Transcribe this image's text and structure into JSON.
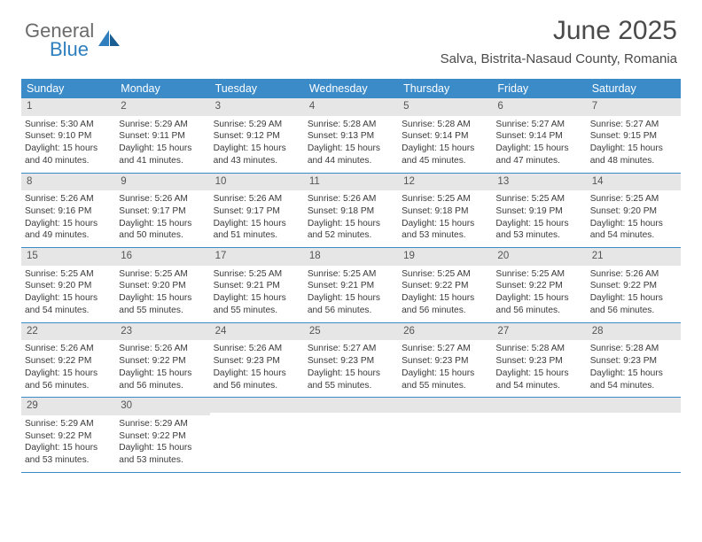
{
  "brand": {
    "line1": "General",
    "line2": "Blue"
  },
  "title": "June 2025",
  "location": "Salva, Bistrita-Nasaud County, Romania",
  "colors": {
    "header_bg": "#3b8bc9",
    "header_text": "#ffffff",
    "daynum_bg": "#e6e6e6",
    "border": "#3b8bc9",
    "text": "#3a3a3a",
    "brand_gray": "#6b6b6b",
    "brand_blue": "#2f7fbf"
  },
  "typography": {
    "title_fontsize": 30,
    "location_fontsize": 15,
    "weekday_fontsize": 12.5,
    "daynum_fontsize": 11.5,
    "body_fontsize": 10.2
  },
  "weekdays": [
    "Sunday",
    "Monday",
    "Tuesday",
    "Wednesday",
    "Thursday",
    "Friday",
    "Saturday"
  ],
  "days": [
    {
      "n": 1,
      "sunrise": "5:30 AM",
      "sunset": "9:10 PM",
      "daylight": "15 hours and 40 minutes."
    },
    {
      "n": 2,
      "sunrise": "5:29 AM",
      "sunset": "9:11 PM",
      "daylight": "15 hours and 41 minutes."
    },
    {
      "n": 3,
      "sunrise": "5:29 AM",
      "sunset": "9:12 PM",
      "daylight": "15 hours and 43 minutes."
    },
    {
      "n": 4,
      "sunrise": "5:28 AM",
      "sunset": "9:13 PM",
      "daylight": "15 hours and 44 minutes."
    },
    {
      "n": 5,
      "sunrise": "5:28 AM",
      "sunset": "9:14 PM",
      "daylight": "15 hours and 45 minutes."
    },
    {
      "n": 6,
      "sunrise": "5:27 AM",
      "sunset": "9:14 PM",
      "daylight": "15 hours and 47 minutes."
    },
    {
      "n": 7,
      "sunrise": "5:27 AM",
      "sunset": "9:15 PM",
      "daylight": "15 hours and 48 minutes."
    },
    {
      "n": 8,
      "sunrise": "5:26 AM",
      "sunset": "9:16 PM",
      "daylight": "15 hours and 49 minutes."
    },
    {
      "n": 9,
      "sunrise": "5:26 AM",
      "sunset": "9:17 PM",
      "daylight": "15 hours and 50 minutes."
    },
    {
      "n": 10,
      "sunrise": "5:26 AM",
      "sunset": "9:17 PM",
      "daylight": "15 hours and 51 minutes."
    },
    {
      "n": 11,
      "sunrise": "5:26 AM",
      "sunset": "9:18 PM",
      "daylight": "15 hours and 52 minutes."
    },
    {
      "n": 12,
      "sunrise": "5:25 AM",
      "sunset": "9:18 PM",
      "daylight": "15 hours and 53 minutes."
    },
    {
      "n": 13,
      "sunrise": "5:25 AM",
      "sunset": "9:19 PM",
      "daylight": "15 hours and 53 minutes."
    },
    {
      "n": 14,
      "sunrise": "5:25 AM",
      "sunset": "9:20 PM",
      "daylight": "15 hours and 54 minutes."
    },
    {
      "n": 15,
      "sunrise": "5:25 AM",
      "sunset": "9:20 PM",
      "daylight": "15 hours and 54 minutes."
    },
    {
      "n": 16,
      "sunrise": "5:25 AM",
      "sunset": "9:20 PM",
      "daylight": "15 hours and 55 minutes."
    },
    {
      "n": 17,
      "sunrise": "5:25 AM",
      "sunset": "9:21 PM",
      "daylight": "15 hours and 55 minutes."
    },
    {
      "n": 18,
      "sunrise": "5:25 AM",
      "sunset": "9:21 PM",
      "daylight": "15 hours and 56 minutes."
    },
    {
      "n": 19,
      "sunrise": "5:25 AM",
      "sunset": "9:22 PM",
      "daylight": "15 hours and 56 minutes."
    },
    {
      "n": 20,
      "sunrise": "5:25 AM",
      "sunset": "9:22 PM",
      "daylight": "15 hours and 56 minutes."
    },
    {
      "n": 21,
      "sunrise": "5:26 AM",
      "sunset": "9:22 PM",
      "daylight": "15 hours and 56 minutes."
    },
    {
      "n": 22,
      "sunrise": "5:26 AM",
      "sunset": "9:22 PM",
      "daylight": "15 hours and 56 minutes."
    },
    {
      "n": 23,
      "sunrise": "5:26 AM",
      "sunset": "9:22 PM",
      "daylight": "15 hours and 56 minutes."
    },
    {
      "n": 24,
      "sunrise": "5:26 AM",
      "sunset": "9:23 PM",
      "daylight": "15 hours and 56 minutes."
    },
    {
      "n": 25,
      "sunrise": "5:27 AM",
      "sunset": "9:23 PM",
      "daylight": "15 hours and 55 minutes."
    },
    {
      "n": 26,
      "sunrise": "5:27 AM",
      "sunset": "9:23 PM",
      "daylight": "15 hours and 55 minutes."
    },
    {
      "n": 27,
      "sunrise": "5:28 AM",
      "sunset": "9:23 PM",
      "daylight": "15 hours and 54 minutes."
    },
    {
      "n": 28,
      "sunrise": "5:28 AM",
      "sunset": "9:23 PM",
      "daylight": "15 hours and 54 minutes."
    },
    {
      "n": 29,
      "sunrise": "5:29 AM",
      "sunset": "9:22 PM",
      "daylight": "15 hours and 53 minutes."
    },
    {
      "n": 30,
      "sunrise": "5:29 AM",
      "sunset": "9:22 PM",
      "daylight": "15 hours and 53 minutes."
    }
  ],
  "labels": {
    "sunrise": "Sunrise: ",
    "sunset": "Sunset: ",
    "daylight": "Daylight: "
  },
  "layout": {
    "columns": 7,
    "first_day_col": 0,
    "total_days": 30
  }
}
